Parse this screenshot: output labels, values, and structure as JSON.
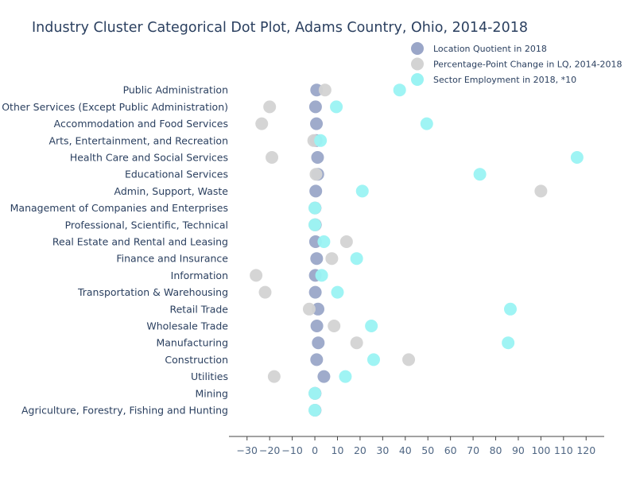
{
  "chart_data": {
    "type": "scatter",
    "title": "Industry Cluster Categorical Dot Plot, Adams Country, Ohio, 2014-2018",
    "xlabel": "",
    "ylabel": "",
    "xlim": [
      -38,
      128
    ],
    "xticks": [
      -30,
      -20,
      -10,
      0,
      10,
      20,
      30,
      40,
      50,
      60,
      70,
      80,
      90,
      100,
      110,
      120
    ],
    "grid": false,
    "legend_position": "top-right",
    "categories": [
      "Agriculture, Forestry, Fishing and Hunting",
      "Mining",
      "Utilities",
      "Construction",
      "Manufacturing",
      "Wholesale Trade",
      "Retail Trade",
      "Transportation & Warehousing",
      "Information",
      "Finance and Insurance",
      "Real Estate and Rental and Leasing",
      "Professional, Scientific, Technical",
      "Management of Companies and Enterprises",
      "Admin, Support, Waste",
      "Educational Services",
      "Health Care and Social Services",
      "Arts, Entertainment, and Recreation",
      "Accommodation and Food Services",
      "Other Services (Except Public Administration)",
      "Public Administration"
    ],
    "series": [
      {
        "name": "Location Quotient in 2018",
        "color": "#9aa6c8",
        "values": [
          0.1,
          0.1,
          4.0,
          0.8,
          1.5,
          0.9,
          1.4,
          0.2,
          0.2,
          0.8,
          0.3,
          0.2,
          0.1,
          0.4,
          1.3,
          1.2,
          0.6,
          0.7,
          0.3,
          0.8
        ]
      },
      {
        "name": "Percentage-Point Change in LQ, 2014-2018",
        "color": "#d3d3d3",
        "values": [
          0.0,
          0.0,
          -18.0,
          41.5,
          18.5,
          8.5,
          -2.5,
          -22.0,
          -26.0,
          7.5,
          14.0,
          0.0,
          0.0,
          100.0,
          0.5,
          -19.0,
          -0.5,
          -23.5,
          -20.0,
          4.5
        ]
      },
      {
        "name": "Sector Employment in 2018, *10",
        "color": "#9af3f3",
        "values": [
          0.0,
          0.0,
          13.5,
          26.0,
          85.5,
          25.0,
          86.5,
          10.0,
          3.0,
          18.5,
          4.0,
          0.0,
          0.0,
          21.0,
          73.0,
          116.0,
          2.5,
          49.5,
          9.5,
          37.5
        ]
      }
    ]
  }
}
